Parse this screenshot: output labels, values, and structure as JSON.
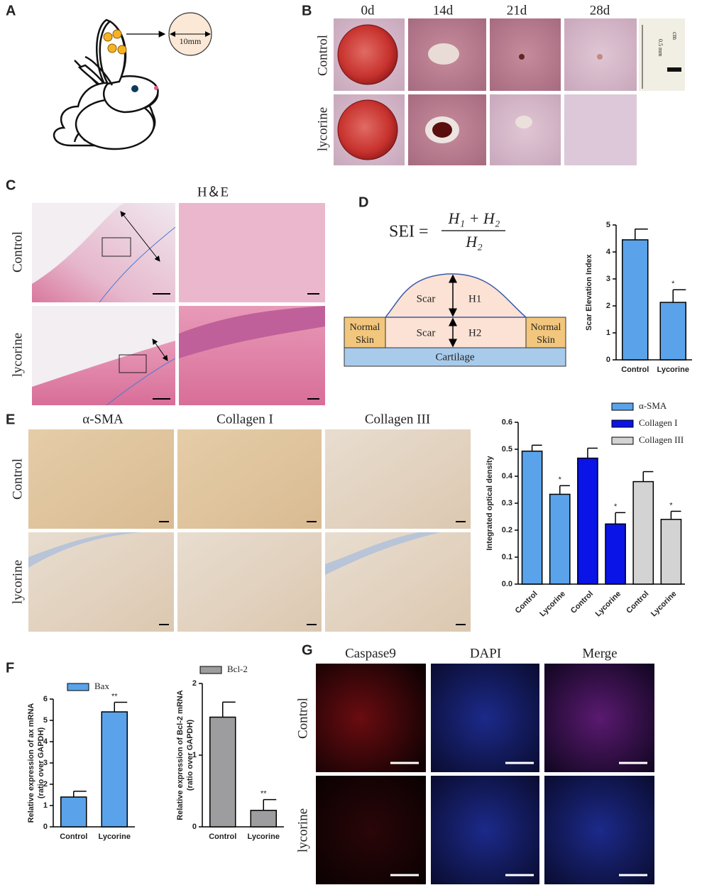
{
  "panels": {
    "A": {
      "label": "A",
      "scale": "10mm"
    },
    "B": {
      "label": "B",
      "columns": [
        "0d",
        "14d",
        "21d",
        "28d"
      ],
      "rows": [
        "Control",
        "lycorine"
      ],
      "ruler": [
        "cm",
        "0.5 mm"
      ]
    },
    "C": {
      "label": "C",
      "stain": "H＆E",
      "rows": [
        "Control",
        "lycorine"
      ]
    },
    "D": {
      "label": "D",
      "formula": {
        "lhs": "SEI =",
        "num": "H₁ + H₂",
        "den": "H₂"
      },
      "diagram": {
        "scar_top": "Scar",
        "h1": "H1",
        "scar_bottom": "Scar",
        "h2": "H2",
        "normal_left": [
          "Normal",
          "Skin"
        ],
        "normal_right": [
          "Normal",
          "Skin"
        ],
        "cartilage": "Cartilage"
      }
    },
    "E": {
      "label": "E",
      "columns": [
        "α-SMA",
        "Collagen I",
        "Collagen III"
      ],
      "rows": [
        "Control",
        "lycorine"
      ]
    },
    "F": {
      "label": "F"
    },
    "G": {
      "label": "G",
      "columns": [
        "Caspase9",
        "DAPI",
        "Merge"
      ],
      "rows": [
        "Control",
        "lycorine"
      ]
    }
  },
  "chart_data": [
    {
      "type": "bar",
      "ylabel": "Scar Elevation Index",
      "categories": [
        "Control",
        "Lycorine"
      ],
      "series": [
        {
          "color": "#5aa3ea",
          "values": [
            4.45,
            2.13
          ],
          "errors": [
            0.4,
            0.47
          ],
          "significance": [
            null,
            "*"
          ]
        }
      ],
      "ylim": [
        0,
        5
      ],
      "yticks": [
        0,
        1,
        2,
        3,
        4,
        5
      ]
    },
    {
      "type": "bar",
      "ylabel": "Integrated optical density",
      "categories": [
        "Control",
        "Lycorine",
        "Control",
        "Lycorine",
        "Control",
        "Lycorine"
      ],
      "series": [
        {
          "name": "α-SMA",
          "color": "#5aa3ea",
          "values": [
            0.493,
            0.333,
            null,
            null,
            null,
            null
          ],
          "errors": [
            0.022,
            0.032,
            null,
            null,
            null,
            null
          ],
          "significance": [
            null,
            "*",
            null,
            null,
            null,
            null
          ]
        },
        {
          "name": "Collagen I",
          "color": "#0a14e6",
          "values": [
            null,
            null,
            0.467,
            0.223,
            null,
            null
          ],
          "errors": [
            null,
            null,
            0.037,
            0.042,
            null,
            null
          ],
          "significance": [
            null,
            null,
            null,
            "*",
            null,
            null
          ]
        },
        {
          "name": "Collagen III",
          "color": "#d3d3d3",
          "values": [
            null,
            null,
            null,
            null,
            0.38,
            0.24
          ],
          "errors": [
            null,
            null,
            null,
            null,
            0.037,
            0.03
          ],
          "significance": [
            null,
            null,
            null,
            null,
            null,
            "*"
          ]
        }
      ],
      "ylim": [
        0,
        0.6
      ],
      "yticks": [
        {
          "value": 0,
          "label": "0.0"
        },
        0.1,
        0.2,
        0.3,
        0.4,
        0.5,
        0.6
      ]
    },
    {
      "type": "bar",
      "ylabel": [
        "Relative expression of ax mRNA",
        "(ratio over GAPDH)"
      ],
      "categories": [
        "Control",
        "Lycorine"
      ],
      "series": [
        {
          "name": "Bax",
          "color": "#5aa3ea",
          "values": [
            1.4,
            5.4
          ],
          "errors": [
            0.27,
            0.45
          ],
          "significance": [
            null,
            "**"
          ]
        }
      ],
      "ylim": [
        0,
        6
      ],
      "yticks": [
        0,
        1,
        2,
        3,
        4,
        5,
        6
      ]
    },
    {
      "type": "bar",
      "ylabel": [
        "Relative expression of Bcl-2 mRNA",
        "(ratio over GAPDH)"
      ],
      "categories": [
        "Control",
        "Lycorine"
      ],
      "series": [
        {
          "name": "Bcl-2",
          "color": "#9d9d9f",
          "values": [
            1.53,
            0.23
          ],
          "errors": [
            0.21,
            0.15
          ],
          "significance": [
            null,
            "**"
          ]
        }
      ],
      "ylim": [
        0,
        2
      ],
      "yticks": [
        0,
        1,
        2
      ]
    }
  ]
}
